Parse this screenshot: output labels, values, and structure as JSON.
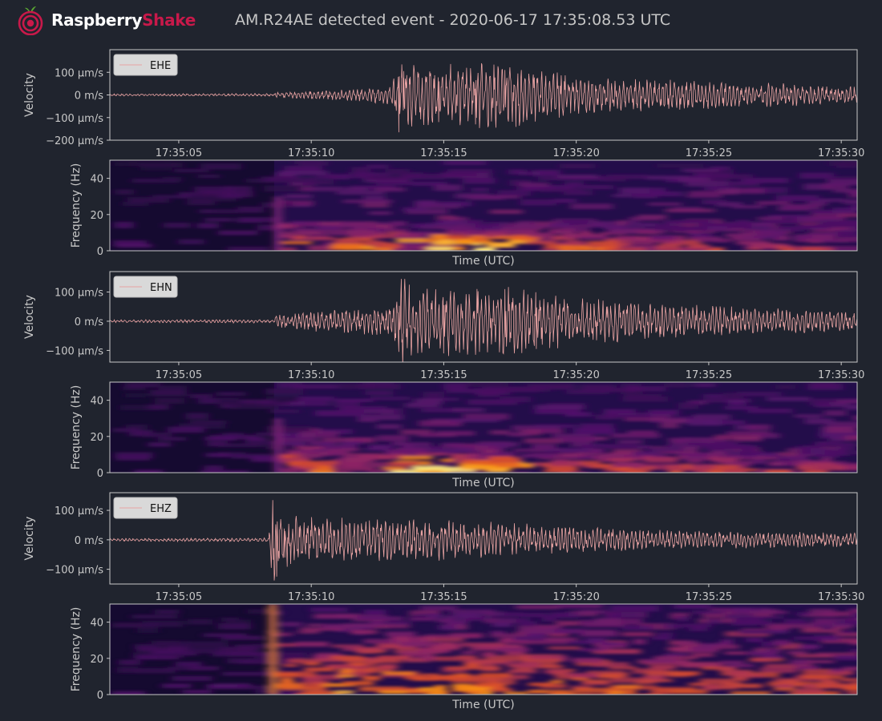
{
  "header": {
    "brand_first": "Raspberry",
    "brand_second": "Shake",
    "title": "AM.R24AE detected event - 2020-06-17 17:35:08.53 UTC"
  },
  "colors": {
    "background": "#20242e",
    "trace": "#e8a2a2",
    "axis": "#c8c8c8",
    "brand_red": "#c8194a",
    "legend_bg": "#d9d9d9"
  },
  "chart_data": [
    {
      "type": "line",
      "channel": "EHE",
      "ylabel": "Velocity",
      "xlabel": "",
      "legend": [
        "EHE"
      ],
      "legend_position": "top-left",
      "xlim": [
        "17:35:02.4",
        "17:35:30.6"
      ],
      "x_ticks": [
        "17:35:05",
        "17:35:10",
        "17:35:15",
        "17:35:20",
        "17:35:25",
        "17:35:30"
      ],
      "ylim_um_s": [
        -200,
        200
      ],
      "y_ticks": [
        {
          "value": 100,
          "label": "100 µm/s"
        },
        {
          "value": 0,
          "label": "0 m/s"
        },
        {
          "value": -100,
          "label": "−100 µm/s"
        },
        {
          "value": -200,
          "label": "−200 µm/s"
        }
      ],
      "envelope_um_s": [
        [
          2.4,
          4
        ],
        [
          8.6,
          5
        ],
        [
          8.7,
          10
        ],
        [
          11.5,
          20
        ],
        [
          13.0,
          35
        ],
        [
          13.4,
          150
        ],
        [
          14.0,
          110
        ],
        [
          17.5,
          115
        ],
        [
          20.0,
          70
        ],
        [
          24.0,
          55
        ],
        [
          30.6,
          30
        ]
      ],
      "spikes_um_s": [
        [
          13.3,
          -165
        ],
        [
          13.5,
          105
        ],
        [
          14.8,
          -120
        ],
        [
          16.2,
          -130
        ],
        [
          17.3,
          110
        ],
        [
          17.8,
          95
        ]
      ]
    },
    {
      "type": "heatmap",
      "channel": "EHE",
      "ylabel": "Frequency (Hz)",
      "xlabel": "Time (UTC)",
      "ylim": [
        0,
        50
      ],
      "y_ticks": [
        0,
        20,
        40
      ],
      "onset": 8.6
    },
    {
      "type": "line",
      "channel": "EHN",
      "ylabel": "Velocity",
      "xlabel": "",
      "legend": [
        "EHN"
      ],
      "legend_position": "top-left",
      "xlim": [
        "17:35:02.4",
        "17:35:30.6"
      ],
      "x_ticks": [
        "17:35:05",
        "17:35:10",
        "17:35:15",
        "17:35:20",
        "17:35:25",
        "17:35:30"
      ],
      "ylim_um_s": [
        -140,
        170
      ],
      "y_ticks": [
        {
          "value": 100,
          "label": "100 µm/s"
        },
        {
          "value": 0,
          "label": "0 m/s"
        },
        {
          "value": -100,
          "label": "−100 µm/s"
        }
      ],
      "envelope_um_s": [
        [
          2.4,
          4
        ],
        [
          8.6,
          5
        ],
        [
          8.7,
          20
        ],
        [
          11.5,
          35
        ],
        [
          13.0,
          40
        ],
        [
          13.4,
          130
        ],
        [
          14.0,
          95
        ],
        [
          17.5,
          95
        ],
        [
          20.0,
          65
        ],
        [
          24.0,
          45
        ],
        [
          30.6,
          25
        ]
      ],
      "spikes_um_s": [
        [
          13.4,
          145
        ],
        [
          13.3,
          -105
        ],
        [
          15.0,
          -110
        ],
        [
          17.3,
          110
        ],
        [
          18.5,
          -95
        ]
      ]
    },
    {
      "type": "heatmap",
      "channel": "EHN",
      "ylabel": "Frequency (Hz)",
      "xlabel": "Time (UTC)",
      "ylim": [
        0,
        50
      ],
      "y_ticks": [
        0,
        20,
        40
      ],
      "onset": 8.6
    },
    {
      "type": "line",
      "channel": "EHZ",
      "ylabel": "Velocity",
      "xlabel": "",
      "legend": [
        "EHZ"
      ],
      "legend_position": "top-left",
      "xlim": [
        "17:35:02.4",
        "17:35:30.6"
      ],
      "x_ticks": [
        "17:35:05",
        "17:35:10",
        "17:35:15",
        "17:35:20",
        "17:35:25",
        "17:35:30"
      ],
      "ylim_um_s": [
        -150,
        160
      ],
      "y_ticks": [
        {
          "value": 100,
          "label": "100 µm/s"
        },
        {
          "value": 0,
          "label": "0 m/s"
        },
        {
          "value": -100,
          "label": "−100 µm/s"
        }
      ],
      "envelope_um_s": [
        [
          2.4,
          4
        ],
        [
          8.4,
          5
        ],
        [
          8.5,
          140
        ],
        [
          9.0,
          75
        ],
        [
          11.0,
          60
        ],
        [
          15.0,
          55
        ],
        [
          20.0,
          35
        ],
        [
          24.0,
          25
        ],
        [
          30.6,
          20
        ]
      ],
      "spikes_um_s": [
        [
          8.55,
          135
        ],
        [
          8.7,
          -125
        ],
        [
          9.0,
          -60
        ]
      ]
    },
    {
      "type": "heatmap",
      "channel": "EHZ",
      "ylabel": "Frequency (Hz)",
      "xlabel": "Time (UTC)",
      "ylim": [
        0,
        50
      ],
      "y_ticks": [
        0,
        20,
        40
      ],
      "onset": 8.4
    }
  ]
}
